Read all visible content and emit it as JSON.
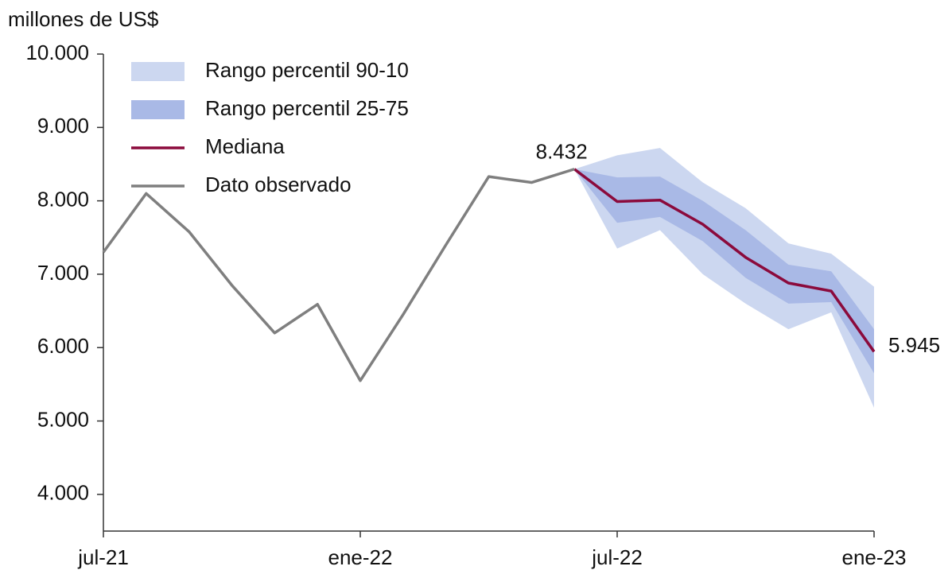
{
  "chart_data": {
    "type": "line",
    "y_label": "millones de US$",
    "categories": [
      "jul-21",
      null,
      null,
      null,
      null,
      null,
      "ene-22",
      null,
      null,
      null,
      null,
      null,
      "jul-22",
      null,
      null,
      null,
      null,
      null,
      "ene-23"
    ],
    "ylim": [
      3500,
      10000
    ],
    "yticks": [
      {
        "value": 4000,
        "label": "4.000"
      },
      {
        "value": 5000,
        "label": "5.000"
      },
      {
        "value": 6000,
        "label": "6.000"
      },
      {
        "value": 7000,
        "label": "7.000"
      },
      {
        "value": 8000,
        "label": "8.000"
      },
      {
        "value": 9000,
        "label": "9.000"
      },
      {
        "value": 10000,
        "label": "10.000"
      }
    ],
    "series": [
      {
        "name": "Rango percentil 90-10",
        "type": "band",
        "color": "#ccd7f0",
        "lower": [
          null,
          null,
          null,
          null,
          null,
          null,
          null,
          null,
          null,
          null,
          null,
          8432,
          7350,
          7600,
          7000,
          6600,
          6250,
          6480,
          5180
        ],
        "upper": [
          null,
          null,
          null,
          null,
          null,
          null,
          null,
          null,
          null,
          null,
          null,
          8432,
          8620,
          8720,
          8250,
          7900,
          7420,
          7280,
          6830
        ]
      },
      {
        "name": "Rango percentil 25-75",
        "type": "band",
        "color": "#a9b9e6",
        "lower": [
          null,
          null,
          null,
          null,
          null,
          null,
          null,
          null,
          null,
          null,
          null,
          8432,
          7700,
          7780,
          7450,
          6950,
          6600,
          6620,
          5650
        ],
        "upper": [
          null,
          null,
          null,
          null,
          null,
          null,
          null,
          null,
          null,
          null,
          null,
          8432,
          8320,
          8330,
          8000,
          7600,
          7130,
          7040,
          6250
        ]
      },
      {
        "name": "Mediana",
        "type": "line",
        "color": "#8b0a3c",
        "values": [
          null,
          null,
          null,
          null,
          null,
          null,
          null,
          null,
          null,
          null,
          null,
          8432,
          7990,
          8010,
          7680,
          7230,
          6880,
          6770,
          5945
        ],
        "value_labels": [
          null,
          null,
          null,
          null,
          null,
          null,
          null,
          null,
          null,
          null,
          null,
          null,
          null,
          null,
          null,
          null,
          null,
          null,
          "5.945"
        ]
      },
      {
        "name": "Dato observado",
        "type": "line",
        "color": "#7f7f7f",
        "values": [
          7300,
          8100,
          7580,
          6850,
          6200,
          6590,
          5550,
          6450,
          7400,
          8330,
          8250,
          8432,
          null,
          null,
          null,
          null,
          null,
          null,
          null
        ],
        "value_labels": [
          null,
          null,
          null,
          null,
          null,
          null,
          null,
          null,
          null,
          null,
          null,
          "8.432",
          null,
          null,
          null,
          null,
          null,
          null,
          null
        ]
      }
    ]
  }
}
